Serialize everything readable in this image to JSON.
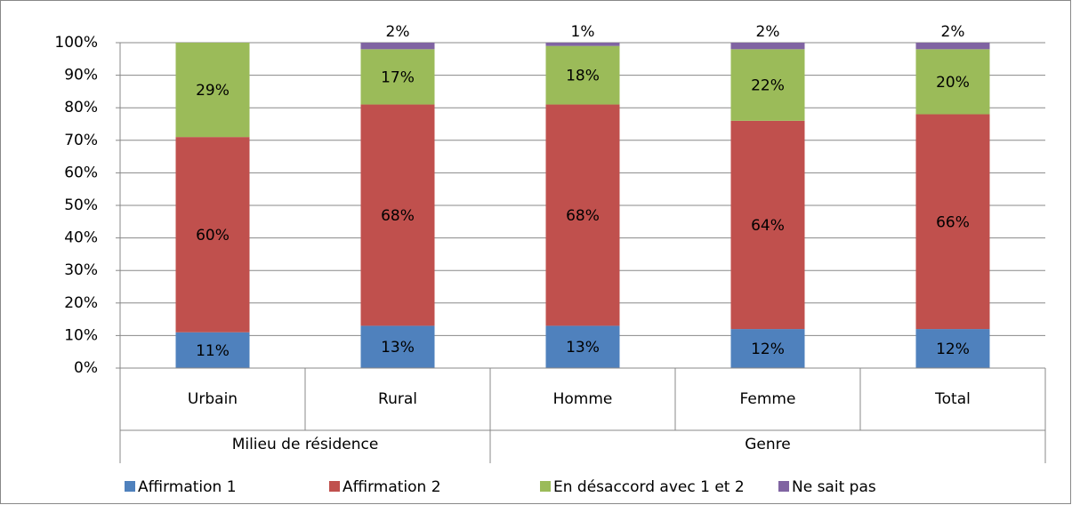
{
  "chart_data": {
    "type": "stacked-bar",
    "categories": [
      "Urbain",
      "Rural",
      "Homme",
      "Femme",
      "Total"
    ],
    "groups": [
      {
        "name": "Milieu de résidence",
        "span": 2
      },
      {
        "name": "Genre",
        "span": 3
      }
    ],
    "series": [
      {
        "name": "Affirmation 1",
        "color": "#4f81bd",
        "values": [
          11,
          13,
          13,
          12,
          12
        ],
        "value_labels": [
          "11%",
          "13%",
          "13%",
          "12%",
          "12%"
        ]
      },
      {
        "name": "Affirmation 2",
        "color": "#c0504d",
        "values": [
          60,
          68,
          68,
          64,
          66
        ],
        "value_labels": [
          "60%",
          "68%",
          "68%",
          "64%",
          "66%"
        ]
      },
      {
        "name": "En désaccord avec 1 et 2",
        "color": "#9bbb59",
        "values": [
          29,
          17,
          18,
          22,
          20
        ],
        "value_labels": [
          "29%",
          "17%",
          "18%",
          "22%",
          "20%"
        ]
      },
      {
        "name": "Ne sait pas",
        "color": "#8064a2",
        "values": [
          0,
          2,
          1,
          2,
          2
        ],
        "value_labels": [
          null,
          "2%",
          "1%",
          "2%",
          "2%"
        ]
      }
    ],
    "ylim": [
      0,
      100
    ],
    "yticks": [
      {
        "value": 0,
        "label": "0%"
      },
      {
        "value": 10,
        "label": "10%"
      },
      {
        "value": 20,
        "label": "20%"
      },
      {
        "value": 30,
        "label": "30%"
      },
      {
        "value": 40,
        "label": "40%"
      },
      {
        "value": 50,
        "label": "50%"
      },
      {
        "value": 60,
        "label": "60%"
      },
      {
        "value": 70,
        "label": "70%"
      },
      {
        "value": 80,
        "label": "80%"
      },
      {
        "value": 90,
        "label": "90%"
      },
      {
        "value": 100,
        "label": "100%"
      }
    ],
    "grid": true,
    "legend": "bottom"
  }
}
